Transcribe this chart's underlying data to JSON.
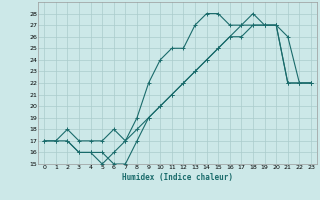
{
  "xlabel": "Humidex (Indice chaleur)",
  "bg_color": "#cce8e8",
  "grid_color": "#aacccc",
  "line_color": "#1a6b6b",
  "xlim": [
    -0.5,
    23.5
  ],
  "ylim": [
    15,
    29
  ],
  "xticks": [
    0,
    1,
    2,
    3,
    4,
    5,
    6,
    7,
    8,
    9,
    10,
    11,
    12,
    13,
    14,
    15,
    16,
    17,
    18,
    19,
    20,
    21,
    22,
    23
  ],
  "yticks": [
    15,
    16,
    17,
    18,
    19,
    20,
    21,
    22,
    23,
    24,
    25,
    26,
    27,
    28
  ],
  "line1_x": [
    0,
    1,
    2,
    3,
    4,
    5,
    6,
    7,
    8,
    9,
    10,
    11,
    12,
    13,
    14,
    15,
    16,
    17,
    18,
    19,
    20,
    21,
    22,
    23
  ],
  "line1_y": [
    17,
    17,
    17,
    16,
    16,
    16,
    15,
    15,
    17,
    19,
    20,
    21,
    22,
    23,
    24,
    25,
    26,
    26,
    27,
    27,
    27,
    22,
    22,
    22
  ],
  "line2_x": [
    0,
    1,
    2,
    3,
    4,
    5,
    6,
    7,
    8,
    9,
    10,
    11,
    12,
    13,
    14,
    15,
    16,
    17,
    18,
    19,
    20,
    21,
    22,
    23
  ],
  "line2_y": [
    17,
    17,
    18,
    17,
    17,
    17,
    18,
    17,
    18,
    19,
    20,
    21,
    22,
    23,
    24,
    25,
    26,
    27,
    27,
    27,
    27,
    22,
    22,
    22
  ],
  "line3_x": [
    2,
    3,
    4,
    5,
    6,
    7,
    8,
    9,
    10,
    11,
    12,
    13,
    14,
    15,
    16,
    17,
    18,
    19,
    20,
    21,
    22,
    23
  ],
  "line3_y": [
    17,
    16,
    16,
    15,
    16,
    17,
    19,
    22,
    24,
    25,
    25,
    27,
    28,
    28,
    27,
    27,
    28,
    27,
    27,
    26,
    22,
    22
  ]
}
